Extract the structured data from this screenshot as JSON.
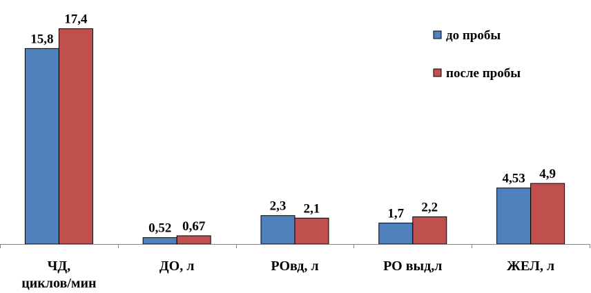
{
  "chart_data": {
    "type": "bar",
    "title": "",
    "xlabel": "",
    "ylabel": "",
    "ylim": [
      0,
      18
    ],
    "grid": false,
    "legend_position": "top-right",
    "categories": [
      [
        "ЧД,",
        "циклов/мин"
      ],
      [
        "ДО, л"
      ],
      [
        "РОвд, л"
      ],
      [
        "РО выд,л"
      ],
      [
        "ЖЕЛ, л"
      ]
    ],
    "series": [
      {
        "name": "до пробы",
        "color": "#4f81bd",
        "values": [
          15.8,
          0.52,
          2.3,
          1.7,
          4.53
        ],
        "labels": [
          "15,8",
          "0,52",
          "2,3",
          "1,7",
          "4,53"
        ]
      },
      {
        "name": "после пробы",
        "color": "#c0504d",
        "values": [
          17.4,
          0.67,
          2.1,
          2.2,
          4.9
        ],
        "labels": [
          "17,4",
          "0,67",
          "2,1",
          "2,2",
          "4,9"
        ]
      }
    ]
  }
}
